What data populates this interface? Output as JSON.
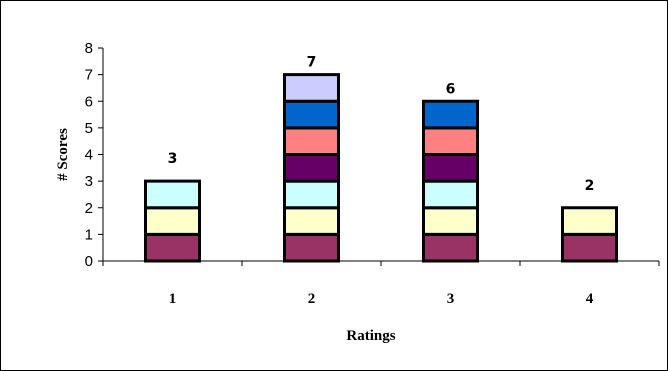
{
  "chart_data": {
    "type": "bar",
    "stacked": true,
    "title": "",
    "xlabel": "Ratings",
    "ylabel": "# Scores",
    "categories": [
      "1",
      "2",
      "3",
      "4"
    ],
    "values": [
      3,
      7,
      6,
      2
    ],
    "data_labels": [
      "3",
      "7",
      "6",
      "2"
    ],
    "ylim": [
      0,
      8
    ],
    "yticks": [
      "0",
      "1",
      "2",
      "3",
      "4",
      "5",
      "6",
      "7",
      "8"
    ],
    "grid": false,
    "legend": "none",
    "segment_colors": [
      "#993366",
      "#FFFFCC",
      "#CCFFFF",
      "#660066",
      "#FF8080",
      "#0066CC",
      "#CCCCFF"
    ]
  }
}
